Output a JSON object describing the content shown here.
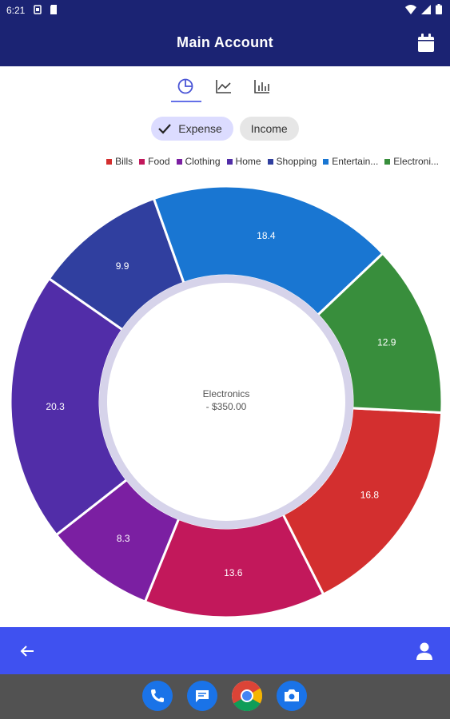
{
  "status_bar": {
    "time": "6:21"
  },
  "app_bar": {
    "title": "Main Account"
  },
  "chart_tabs": [
    {
      "name": "pie",
      "active": true
    },
    {
      "name": "line",
      "active": false
    },
    {
      "name": "bar",
      "active": false
    }
  ],
  "toggle": {
    "expense_label": "Expense",
    "income_label": "Income",
    "selected": "Expense"
  },
  "chart_data": {
    "type": "pie",
    "style": "donut",
    "legend_position": "top-right",
    "slices": [
      {
        "label": "Bills",
        "value": 16.8,
        "color": "#d32f2f"
      },
      {
        "label": "Food",
        "value": 13.6,
        "color": "#c2185b"
      },
      {
        "label": "Clothing",
        "value": 8.3,
        "color": "#7b1fa2"
      },
      {
        "label": "Home",
        "value": 20.3,
        "color": "#512da8"
      },
      {
        "label": "Shopping",
        "value": 9.9,
        "color": "#303f9f"
      },
      {
        "label": "Entertain...",
        "value": 18.4,
        "color": "#1976d2"
      },
      {
        "label": "Electroni...",
        "value": 12.9,
        "color": "#388e3c"
      }
    ],
    "center_label": "Electronics",
    "center_value": "- $350.00"
  },
  "colors": {
    "app_bar": "#1b2373",
    "bottom_bar": "#3f51f0",
    "nav_bar": "#525252"
  }
}
